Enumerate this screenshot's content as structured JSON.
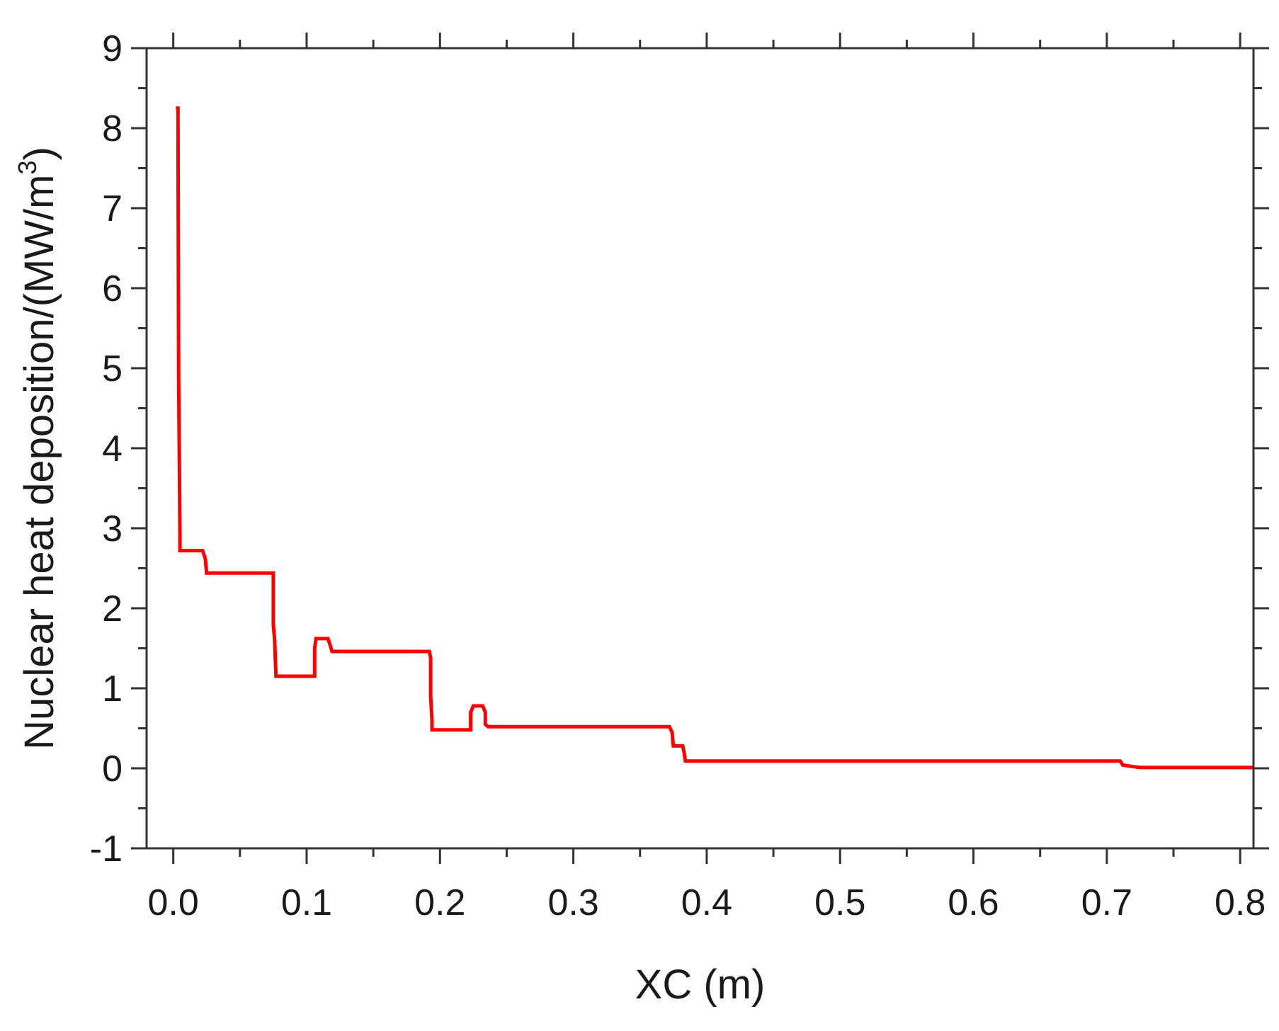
{
  "chart_data": {
    "type": "line",
    "title": "",
    "xlabel": "XC (m)",
    "ylabel": {
      "main": "Nuclear heat deposition/(MW/m",
      "superscript": "3",
      "suffix": ")"
    },
    "xlim": [
      -0.02,
      0.81
    ],
    "ylim": [
      -1,
      9
    ],
    "x_ticks": [
      0.0,
      0.1,
      0.2,
      0.3,
      0.4,
      0.5,
      0.6,
      0.7,
      0.8
    ],
    "x_tick_labels": [
      "0.0",
      "0.1",
      "0.2",
      "0.3",
      "0.4",
      "0.5",
      "0.6",
      "0.7",
      "0.8"
    ],
    "x_minor_step": 0.05,
    "y_ticks": [
      -1,
      0,
      1,
      2,
      3,
      4,
      5,
      6,
      7,
      8,
      9
    ],
    "y_tick_labels": [
      "-1",
      "0",
      "1",
      "2",
      "3",
      "4",
      "5",
      "6",
      "7",
      "8",
      "9"
    ],
    "y_minor_step": 0.5,
    "grid": false,
    "series": [
      {
        "color": "#ff0000",
        "x": [
          0.002,
          0.0035,
          0.004,
          0.004,
          0.005,
          0.005,
          0.022,
          0.024,
          0.025,
          0.075,
          0.075,
          0.076,
          0.077,
          0.078,
          0.106,
          0.106,
          0.107,
          0.11,
          0.116,
          0.118,
          0.119,
          0.192,
          0.193,
          0.193,
          0.194,
          0.194,
          0.223,
          0.223,
          0.225,
          0.232,
          0.234,
          0.234,
          0.236,
          0.372,
          0.374,
          0.375,
          0.382,
          0.383,
          0.384,
          0.71,
          0.712,
          0.72,
          0.725,
          0.81
        ],
        "y": [
          8.25,
          8.25,
          5.0,
          4.95,
          2.9,
          2.72,
          2.72,
          2.62,
          2.44,
          2.44,
          1.8,
          1.6,
          1.15,
          1.15,
          1.15,
          1.5,
          1.62,
          1.62,
          1.62,
          1.52,
          1.46,
          1.46,
          1.38,
          0.9,
          0.6,
          0.48,
          0.48,
          0.7,
          0.78,
          0.78,
          0.7,
          0.55,
          0.52,
          0.52,
          0.45,
          0.28,
          0.28,
          0.2,
          0.09,
          0.09,
          0.04,
          0.02,
          0.01,
          0.01
        ]
      }
    ]
  }
}
